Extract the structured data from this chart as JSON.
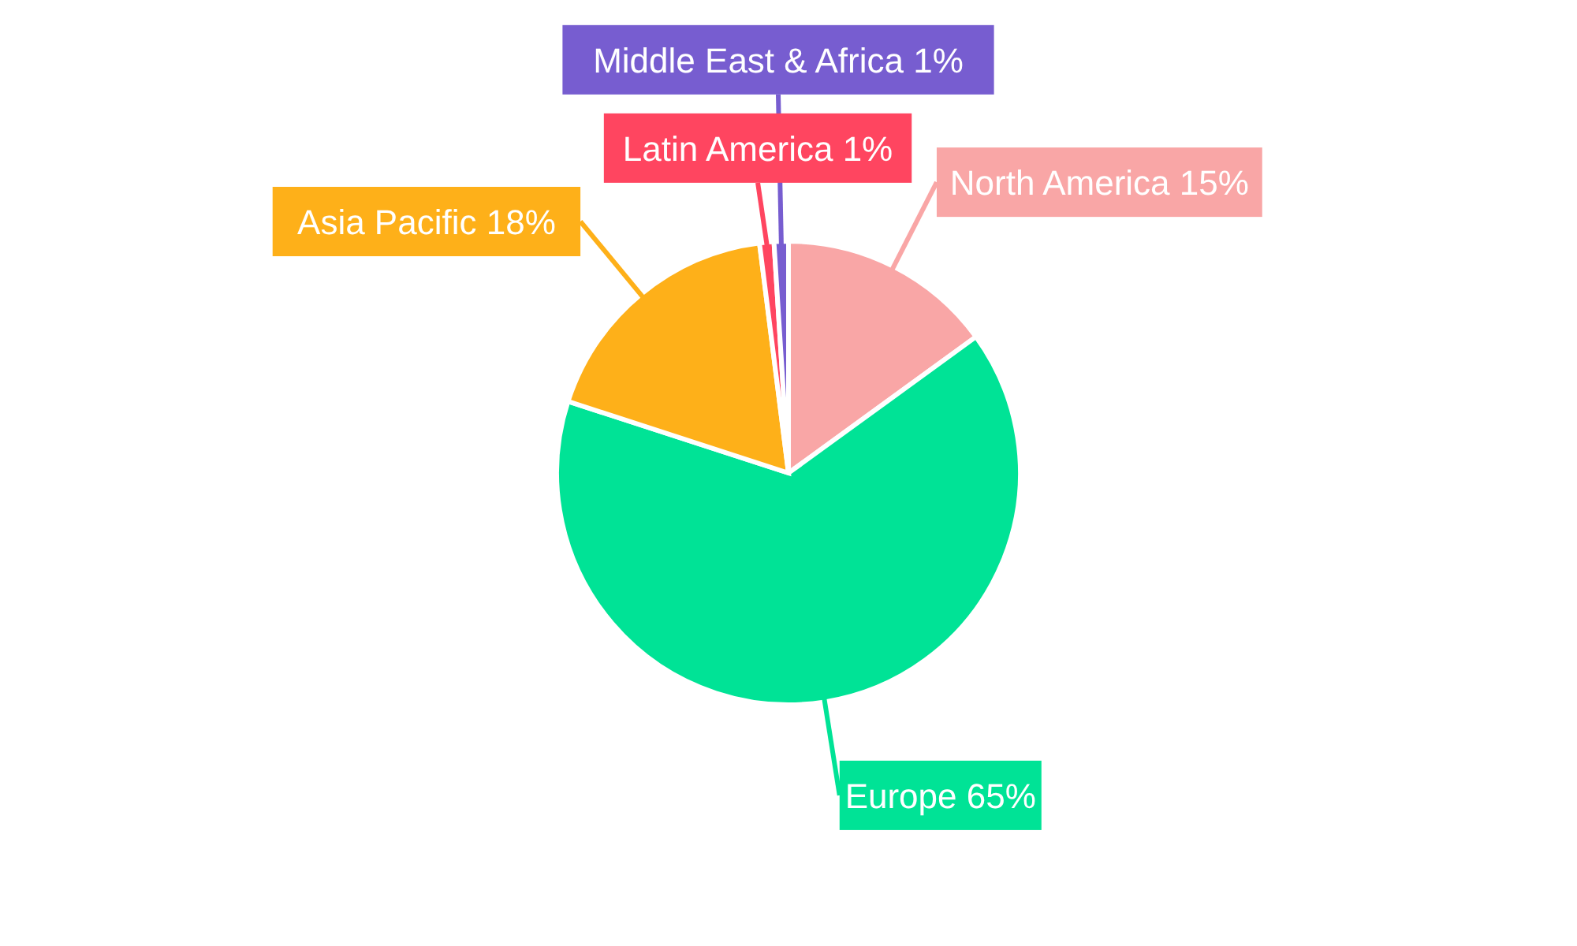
{
  "chart_data": {
    "type": "pie",
    "categories": [
      "North America",
      "Europe",
      "Asia Pacific",
      "Latin America",
      "Middle East & Africa"
    ],
    "values": [
      15,
      65,
      18,
      1,
      1
    ],
    "colors": [
      "#f9a6a6",
      "#00e396",
      "#feb019",
      "#ff4560",
      "#775dd0"
    ],
    "value_labels": [
      "15%",
      "65%",
      "18%",
      "1%",
      "1%"
    ]
  }
}
